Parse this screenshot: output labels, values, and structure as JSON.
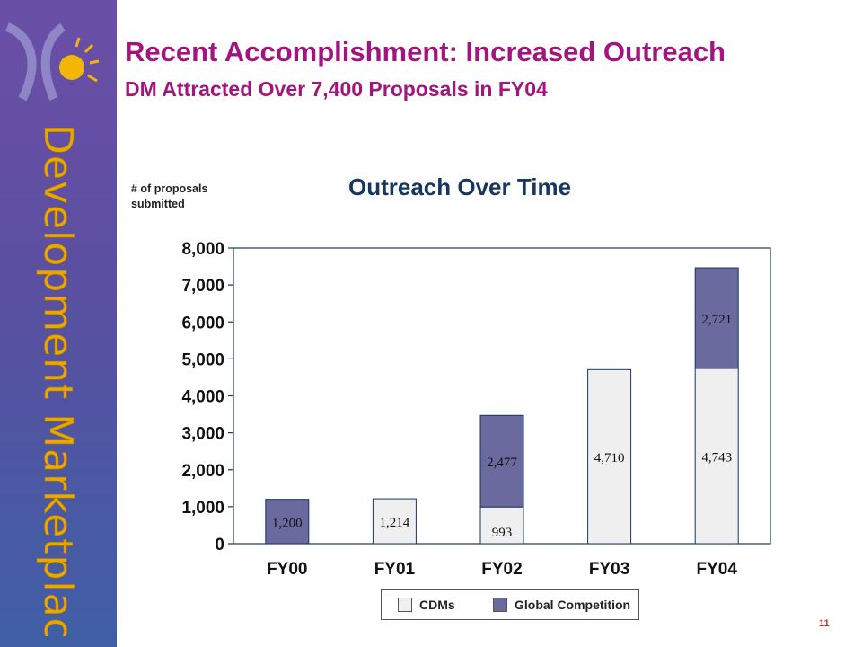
{
  "header": {
    "title": "Recent Accomplishment: Increased Outreach",
    "subtitle": "DM Attracted Over 7,400 Proposals in FY04"
  },
  "sidebar": {
    "brand": "Development Marketplace"
  },
  "page_number": "11",
  "colors": {
    "cdms": "#efefef",
    "global": "#6a6a9e",
    "title": "#a3157e"
  },
  "chart_data": {
    "type": "bar",
    "stacked": true,
    "title": "Outreach Over Time",
    "ylabel": "# of proposals submitted",
    "xlabel": "",
    "categories": [
      "FY00",
      "FY01",
      "FY02",
      "FY03",
      "FY04"
    ],
    "ylim": [
      0,
      8000
    ],
    "yticks": [
      0,
      1000,
      2000,
      3000,
      4000,
      5000,
      6000,
      7000,
      8000
    ],
    "ytick_labels": [
      "0",
      "1,000",
      "2,000",
      "3,000",
      "4,000",
      "5,000",
      "6,000",
      "7,000",
      "8,000"
    ],
    "series": [
      {
        "name": "CDMs",
        "values": [
          0,
          1214,
          993,
          4710,
          4743
        ],
        "labels": [
          "",
          "1,214",
          "993",
          "4,710",
          "4,743"
        ]
      },
      {
        "name": "Global Competition",
        "values": [
          1200,
          0,
          2477,
          0,
          2721
        ],
        "labels": [
          "1,200",
          "",
          "2,477",
          "",
          "2,721"
        ]
      }
    ],
    "grid": false,
    "legend_position": "bottom"
  }
}
